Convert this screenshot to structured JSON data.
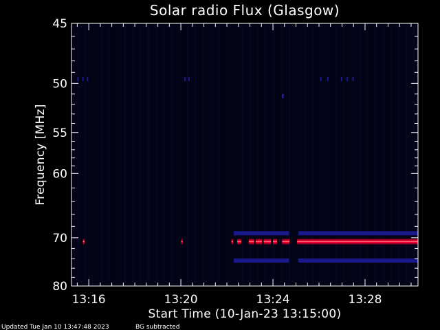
{
  "chart_data": {
    "type": "heatmap",
    "title": "Solar radio Flux (Glasgow)",
    "xlabel": "Start Time (10-Jan-23 13:15:00)",
    "ylabel": "Frequency [MHz]",
    "x_unit": "minutes after 13:15:00",
    "xlim": [
      0.25,
      15.3
    ],
    "ylim": [
      45,
      80
    ],
    "y_scale": "reciprocal",
    "y_inverted": true,
    "x_ticks": [
      {
        "label": "13:16",
        "value": 1
      },
      {
        "label": "13:20",
        "value": 5
      },
      {
        "label": "13:24",
        "value": 9
      },
      {
        "label": "13:28",
        "value": 13
      }
    ],
    "y_ticks": [
      {
        "label": "45",
        "value": 45
      },
      {
        "label": "50",
        "value": 50
      },
      {
        "label": "55",
        "value": 55
      },
      {
        "label": "60",
        "value": 60
      },
      {
        "label": "70",
        "value": 70
      },
      {
        "label": "80",
        "value": 80
      }
    ],
    "colors": {
      "background": "#000000",
      "plot_background": "#030316",
      "low_emission": "#1a1a8c",
      "mid_emission": "#2c2cc8",
      "strong_emission": "#ff0033",
      "peak_emission": "#ff8080",
      "axes": "#ffffff"
    },
    "emission_events": [
      {
        "freq": 70.7,
        "x_start": 0.75,
        "x_end": 0.82,
        "level": "strong"
      },
      {
        "freq": 70.7,
        "x_start": 5.02,
        "x_end": 5.07,
        "level": "strong"
      },
      {
        "freq": 70.7,
        "x_start": 7.2,
        "x_end": 7.27,
        "level": "strong"
      },
      {
        "freq": 70.7,
        "x_start": 7.45,
        "x_end": 7.62,
        "level": "strong"
      },
      {
        "freq": 70.7,
        "x_start": 7.95,
        "x_end": 8.18,
        "level": "strong"
      },
      {
        "freq": 70.7,
        "x_start": 8.25,
        "x_end": 8.52,
        "level": "strong"
      },
      {
        "freq": 70.7,
        "x_start": 8.6,
        "x_end": 8.92,
        "level": "strong"
      },
      {
        "freq": 70.7,
        "x_start": 9.0,
        "x_end": 9.18,
        "level": "strong"
      },
      {
        "freq": 70.7,
        "x_start": 9.4,
        "x_end": 9.72,
        "level": "strong"
      },
      {
        "freq": 70.7,
        "x_start": 10.05,
        "x_end": 15.28,
        "level": "strong"
      },
      {
        "freq": 51.2,
        "x_start": 9.4,
        "x_end": 9.45,
        "level": "mid"
      },
      {
        "freq": 49.6,
        "x_start": 0.5,
        "x_end": 0.55,
        "level": "low"
      },
      {
        "freq": 49.6,
        "x_start": 0.72,
        "x_end": 0.77,
        "level": "low"
      },
      {
        "freq": 49.6,
        "x_start": 0.92,
        "x_end": 0.97,
        "level": "low"
      },
      {
        "freq": 49.6,
        "x_start": 5.15,
        "x_end": 5.18,
        "level": "low"
      },
      {
        "freq": 49.6,
        "x_start": 5.32,
        "x_end": 5.35,
        "level": "low"
      },
      {
        "freq": 49.6,
        "x_start": 11.05,
        "x_end": 11.08,
        "level": "low"
      },
      {
        "freq": 49.6,
        "x_start": 11.35,
        "x_end": 11.38,
        "level": "low"
      },
      {
        "freq": 49.6,
        "x_start": 11.95,
        "x_end": 11.98,
        "level": "low"
      },
      {
        "freq": 49.6,
        "x_start": 12.2,
        "x_end": 12.23,
        "level": "low"
      },
      {
        "freq": 49.6,
        "x_start": 12.45,
        "x_end": 12.48,
        "level": "low"
      },
      {
        "freq": 69.2,
        "x_start": 7.3,
        "x_end": 9.7,
        "level": "low"
      },
      {
        "freq": 69.2,
        "x_start": 10.1,
        "x_end": 15.28,
        "level": "low"
      },
      {
        "freq": 74.4,
        "x_start": 7.3,
        "x_end": 9.7,
        "level": "low"
      },
      {
        "freq": 74.4,
        "x_start": 10.1,
        "x_end": 15.28,
        "level": "low"
      }
    ]
  },
  "footer": {
    "updated": "Updated Tue Jan 10 13:47:48 2023",
    "note": "BG subtracted"
  }
}
